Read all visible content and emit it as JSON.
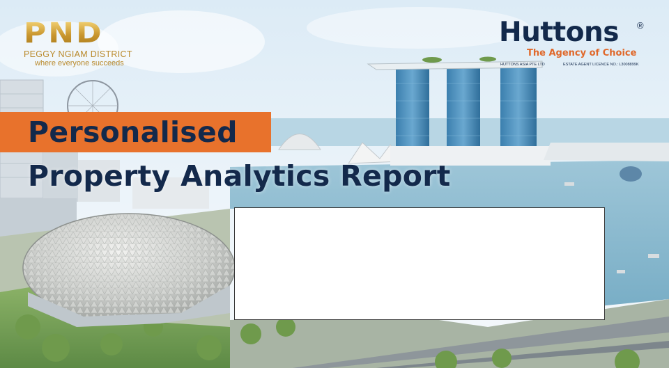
{
  "pnd_logo": {
    "mark": "PND",
    "name": "PEGGY NGIAM DISTRICT",
    "tagline": "where everyone succeeds"
  },
  "huttons_logo": {
    "name": "Huttons",
    "registered_mark": "®",
    "tagline": "The Agency of Choice",
    "company": "HUTTONS ASIA PTE LTD",
    "licence": "ESTATE AGENT LICENCE NO.: L3008899K"
  },
  "title": {
    "line1": "Personalised",
    "line2": "Property Analytics Report"
  },
  "info_box": {
    "content": ""
  },
  "colors": {
    "accent_orange": "#e8722c",
    "navy": "#13294b",
    "gold": "#c9962e",
    "box_fill": "#ffffff"
  }
}
